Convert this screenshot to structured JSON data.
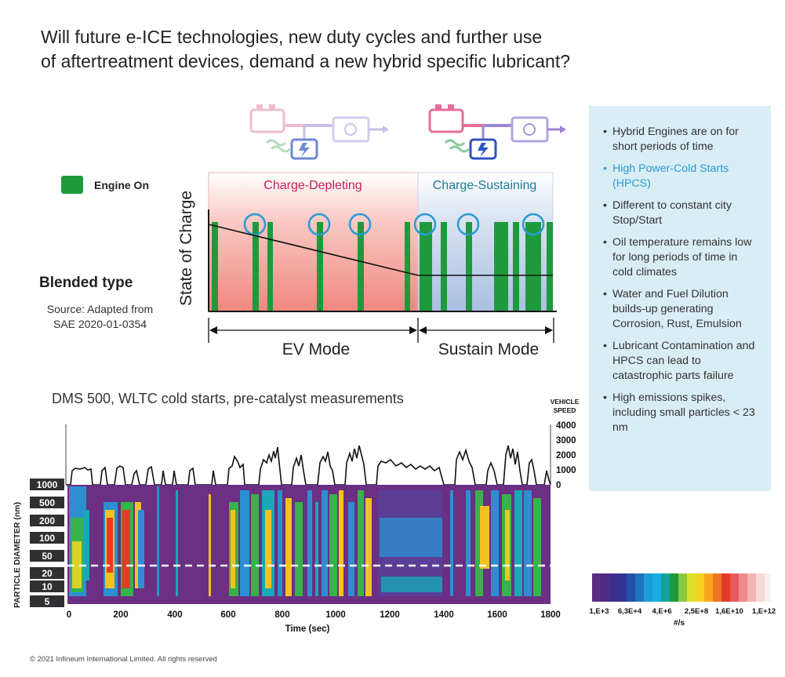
{
  "title": {
    "line1": "Will future e-ICE technologies, new duty cycles and further use",
    "line2": "of aftertreatment devices, demand a new hybrid specific lubricant?"
  },
  "legend": {
    "label": "Engine On",
    "color": "#1e9a3c"
  },
  "soc_chart": {
    "ylabel": "State of Charge",
    "region_left": "Charge-Depleting",
    "region_right": "Charge-Sustaining",
    "mode_left": "EV Mode",
    "mode_right": "Sustain Mode"
  },
  "blended_type": "Blended type",
  "source": {
    "line1": "Source: Adapted from",
    "line2": "SAE 2020-01-0354"
  },
  "info_bullets": [
    {
      "text": "Hybrid Engines are on for short periods of time",
      "highlight": false
    },
    {
      "text": "High Power-Cold Starts (HPCS)",
      "highlight": true
    },
    {
      "text": "Different to constant city Stop/Start",
      "highlight": false
    },
    {
      "text": "Oil temperature remains low for long periods of time in cold climates",
      "highlight": false
    },
    {
      "text": "Water and Fuel Dilution builds-up generating Corrosion, Rust, Emulsion",
      "highlight": false
    },
    {
      "text": "Lubricant Contamination and HPCS can lead to catastrophic parts failure",
      "highlight": false
    },
    {
      "text": "High emissions spikes, including small particles < 23 nm",
      "highlight": false
    }
  ],
  "dms": {
    "title": "DMS 500, WLTC cold starts, pre-catalyst measurements",
    "vehicle_speed_label": [
      "VEHICLE",
      "SPEED"
    ],
    "speed_ticks": [
      "4000",
      "3000",
      "2000",
      "1000",
      "0"
    ],
    "diameter_label": "PARTICLE DIAMETER (nm)",
    "diameter_ticks": [
      "1000",
      "500",
      "200",
      "100",
      "50",
      "20",
      "10",
      "5"
    ],
    "time_label": "Time (sec)",
    "time_ticks": [
      "0",
      "200",
      "400",
      "600",
      "800",
      "1000",
      "1200",
      "1400",
      "1600",
      "1800"
    ],
    "colorbar_ticks": [
      "1,E+3",
      "6,3E+4",
      "4,E+6",
      "2,5E+8",
      "1,6E+10",
      "1,E+12"
    ],
    "colorbar_unit": "#/s"
  },
  "footer": "© 2021 Infineum International Limited. All rights reserved"
}
